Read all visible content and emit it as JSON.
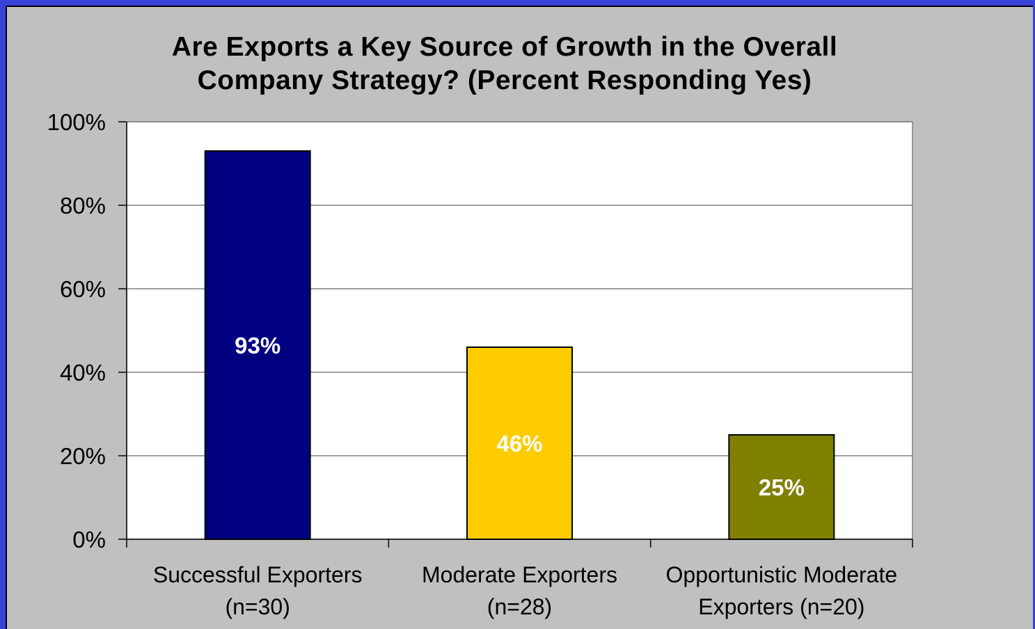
{
  "chart_data": {
    "type": "bar",
    "title": "Are Exports a Key Source of Growth in the Overall Company Strategy? (Percent Responding Yes)",
    "title_lines": [
      "Are Exports a Key Source of Growth in the Overall",
      "Company Strategy? (Percent Responding Yes)"
    ],
    "categories": [
      "Successful Exporters (n=30)",
      "Moderate Exporters (n=28)",
      "Opportunistic Moderate Exporters (n=20)"
    ],
    "category_lines": [
      [
        "Successful Exporters",
        "(n=30)"
      ],
      [
        "Moderate Exporters",
        "(n=28)"
      ],
      [
        "Opportunistic Moderate",
        "Exporters (n=20)"
      ]
    ],
    "values": [
      93,
      46,
      25
    ],
    "data_labels": [
      "93%",
      "46%",
      "25%"
    ],
    "bar_colors": [
      "#000080",
      "#ffcc00",
      "#808000"
    ],
    "ylim": [
      0,
      100
    ],
    "yticks": [
      0,
      20,
      40,
      60,
      80,
      100
    ],
    "ytick_labels": [
      "0%",
      "20%",
      "40%",
      "60%",
      "80%",
      "100%"
    ],
    "xlabel": "",
    "ylabel": "",
    "grid": true,
    "legend": "none"
  },
  "colors": {
    "frame": "#3b42d8",
    "chart_background": "#c0c0c0",
    "plot_background": "#ffffff",
    "gridline": "#808080",
    "data_label": "#ffffff"
  }
}
